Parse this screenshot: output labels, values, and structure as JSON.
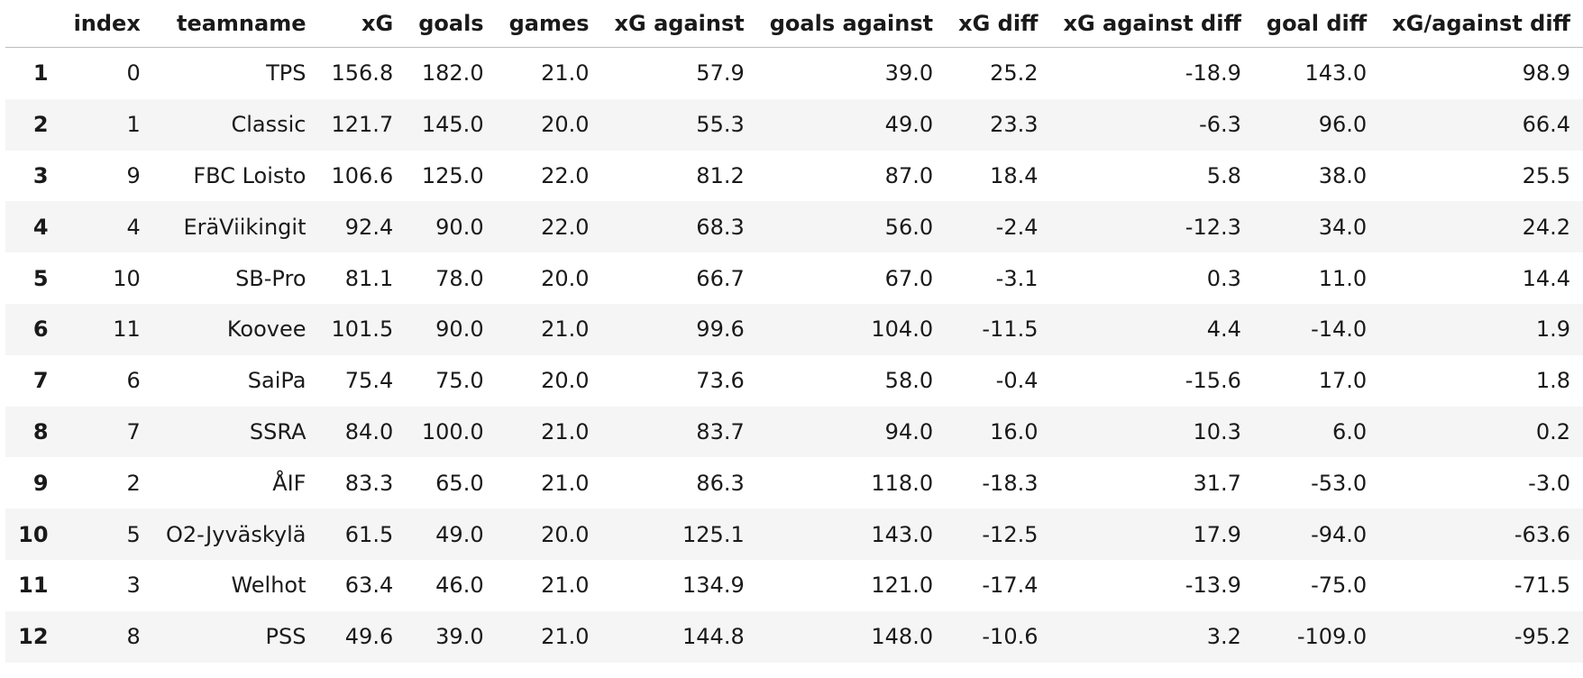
{
  "table": {
    "columns": [
      "",
      "index",
      "teamname",
      "xG",
      "goals",
      "games",
      "xG against",
      "goals against",
      "xG diff",
      "xG against diff",
      "goal diff",
      "xG/against diff"
    ],
    "rows": [
      {
        "label": "1",
        "index": "0",
        "teamname": "TPS",
        "xG": "156.8",
        "goals": "182.0",
        "games": "21.0",
        "xg_against": "57.9",
        "goals_against": "39.0",
        "xg_diff": "25.2",
        "xg_against_diff": "-18.9",
        "goal_diff": "143.0",
        "xg_over_against_diff": "98.9"
      },
      {
        "label": "2",
        "index": "1",
        "teamname": "Classic",
        "xG": "121.7",
        "goals": "145.0",
        "games": "20.0",
        "xg_against": "55.3",
        "goals_against": "49.0",
        "xg_diff": "23.3",
        "xg_against_diff": "-6.3",
        "goal_diff": "96.0",
        "xg_over_against_diff": "66.4"
      },
      {
        "label": "3",
        "index": "9",
        "teamname": "FBC Loisto",
        "xG": "106.6",
        "goals": "125.0",
        "games": "22.0",
        "xg_against": "81.2",
        "goals_against": "87.0",
        "xg_diff": "18.4",
        "xg_against_diff": "5.8",
        "goal_diff": "38.0",
        "xg_over_against_diff": "25.5"
      },
      {
        "label": "4",
        "index": "4",
        "teamname": "EräViikingit",
        "xG": "92.4",
        "goals": "90.0",
        "games": "22.0",
        "xg_against": "68.3",
        "goals_against": "56.0",
        "xg_diff": "-2.4",
        "xg_against_diff": "-12.3",
        "goal_diff": "34.0",
        "xg_over_against_diff": "24.2"
      },
      {
        "label": "5",
        "index": "10",
        "teamname": "SB-Pro",
        "xG": "81.1",
        "goals": "78.0",
        "games": "20.0",
        "xg_against": "66.7",
        "goals_against": "67.0",
        "xg_diff": "-3.1",
        "xg_against_diff": "0.3",
        "goal_diff": "11.0",
        "xg_over_against_diff": "14.4"
      },
      {
        "label": "6",
        "index": "11",
        "teamname": "Koovee",
        "xG": "101.5",
        "goals": "90.0",
        "games": "21.0",
        "xg_against": "99.6",
        "goals_against": "104.0",
        "xg_diff": "-11.5",
        "xg_against_diff": "4.4",
        "goal_diff": "-14.0",
        "xg_over_against_diff": "1.9"
      },
      {
        "label": "7",
        "index": "6",
        "teamname": "SaiPa",
        "xG": "75.4",
        "goals": "75.0",
        "games": "20.0",
        "xg_against": "73.6",
        "goals_against": "58.0",
        "xg_diff": "-0.4",
        "xg_against_diff": "-15.6",
        "goal_diff": "17.0",
        "xg_over_against_diff": "1.8"
      },
      {
        "label": "8",
        "index": "7",
        "teamname": "SSRA",
        "xG": "84.0",
        "goals": "100.0",
        "games": "21.0",
        "xg_against": "83.7",
        "goals_against": "94.0",
        "xg_diff": "16.0",
        "xg_against_diff": "10.3",
        "goal_diff": "6.0",
        "xg_over_against_diff": "0.2"
      },
      {
        "label": "9",
        "index": "2",
        "teamname": "ÅIF",
        "xG": "83.3",
        "goals": "65.0",
        "games": "21.0",
        "xg_against": "86.3",
        "goals_against": "118.0",
        "xg_diff": "-18.3",
        "xg_against_diff": "31.7",
        "goal_diff": "-53.0",
        "xg_over_against_diff": "-3.0"
      },
      {
        "label": "10",
        "index": "5",
        "teamname": "O2-Jyväskylä",
        "xG": "61.5",
        "goals": "49.0",
        "games": "20.0",
        "xg_against": "125.1",
        "goals_against": "143.0",
        "xg_diff": "-12.5",
        "xg_against_diff": "17.9",
        "goal_diff": "-94.0",
        "xg_over_against_diff": "-63.6"
      },
      {
        "label": "11",
        "index": "3",
        "teamname": "Welhot",
        "xG": "63.4",
        "goals": "46.0",
        "games": "21.0",
        "xg_against": "134.9",
        "goals_against": "121.0",
        "xg_diff": "-17.4",
        "xg_against_diff": "-13.9",
        "goal_diff": "-75.0",
        "xg_over_against_diff": "-71.5"
      },
      {
        "label": "12",
        "index": "8",
        "teamname": "PSS",
        "xG": "49.6",
        "goals": "39.0",
        "games": "21.0",
        "xg_against": "144.8",
        "goals_against": "148.0",
        "xg_diff": "-10.6",
        "xg_against_diff": "3.2",
        "goal_diff": "-109.0",
        "xg_over_against_diff": "-95.2"
      }
    ]
  }
}
